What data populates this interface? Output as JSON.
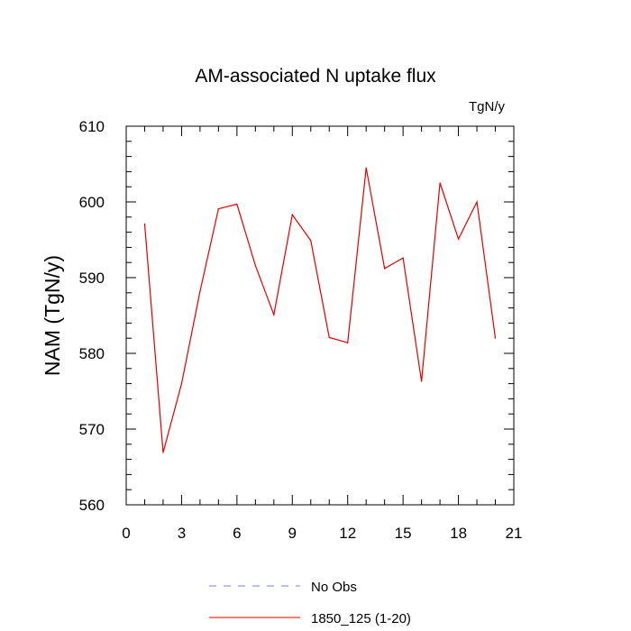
{
  "chart_data": {
    "type": "line",
    "title": "AM-associated N uptake flux",
    "units_label": "TgN/y",
    "ylabel": "NAM  (TgN/y)",
    "xlabel": "",
    "xlim": [
      0,
      21
    ],
    "ylim": [
      560,
      610
    ],
    "x_ticks": [
      0,
      3,
      6,
      9,
      12,
      15,
      18,
      21
    ],
    "y_ticks": [
      560,
      570,
      580,
      590,
      600,
      610
    ],
    "x_minor_step": 1,
    "y_minor_step": 2,
    "grid": false,
    "legend_position": "bottom",
    "series": [
      {
        "name": "No Obs",
        "color": "#7b7bf0",
        "style": "dashed",
        "x": [],
        "values": []
      },
      {
        "name": "1850_125 (1-20)",
        "color": "#e00000",
        "style": "solid",
        "x": [
          1,
          2,
          3,
          4,
          5,
          6,
          7,
          8,
          9,
          10,
          11,
          12,
          13,
          14,
          15,
          16,
          17,
          18,
          19,
          20
        ],
        "values": [
          597.1,
          566.9,
          576.0,
          588.2,
          599.1,
          599.7,
          591.6,
          585.1,
          598.3,
          594.9,
          582.1,
          581.4,
          604.5,
          591.2,
          592.6,
          576.3,
          602.5,
          595.1,
          600.0,
          582.0
        ]
      }
    ]
  }
}
